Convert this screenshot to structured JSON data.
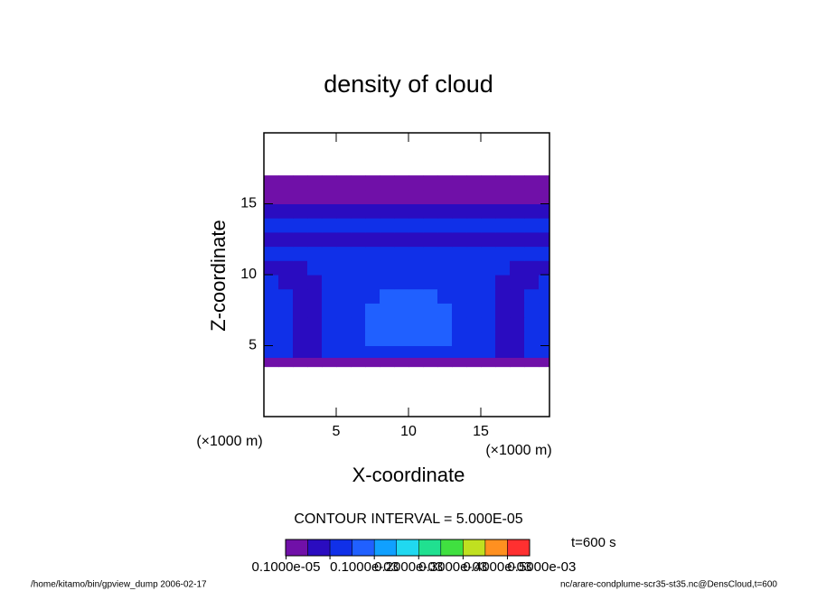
{
  "chart_data": {
    "type": "contour",
    "title": "density of cloud",
    "xlabel": "X-coordinate",
    "ylabel": "Z-coordinate",
    "xunit": "(×1000 m)",
    "yunit": "(×1000 m)",
    "xlim": [
      0,
      19.75
    ],
    "ylim": [
      0,
      20
    ],
    "xticks": [
      5,
      10,
      15
    ],
    "yticks": [
      5,
      10,
      15
    ],
    "x": [
      0.5,
      1.5,
      2.5,
      3.5,
      4.5,
      5.5,
      6.5,
      7.5,
      8.5,
      9.5,
      10.5,
      11.5,
      12.5,
      13.5,
      14.5,
      15.5,
      16.5,
      17.5,
      18.5,
      19.5
    ],
    "y": [
      3.85,
      4.5,
      5.5,
      6.5,
      7.5,
      8.5,
      9.5,
      10.5,
      11.5,
      12.5,
      13.5,
      14.5,
      15.5,
      16.5
    ],
    "z": [
      [
        2e-05,
        2e-05,
        2e-05,
        2e-05,
        2e-05,
        2e-05,
        2e-05,
        2e-05,
        2e-05,
        2e-05,
        2e-05,
        2e-05,
        2e-05,
        2e-05,
        2e-05,
        2e-05,
        2e-05,
        2e-05,
        2e-05,
        2e-05
      ],
      [
        0.00012,
        0.00012,
        8e-05,
        8e-05,
        0.00012,
        0.00012,
        0.00012,
        0.00014,
        0.00014,
        0.00014,
        0.00014,
        0.00014,
        0.00014,
        0.00012,
        0.00012,
        0.00012,
        8e-05,
        8e-05,
        0.00012,
        0.00012
      ],
      [
        0.00012,
        0.00012,
        8e-05,
        8e-05,
        0.00012,
        0.00012,
        0.00014,
        0.00016,
        0.00017,
        0.00017,
        0.00017,
        0.00017,
        0.00016,
        0.00014,
        0.00012,
        0.00012,
        8e-05,
        8e-05,
        0.00012,
        0.00012
      ],
      [
        0.00012,
        0.00012,
        8e-05,
        8e-05,
        0.00012,
        0.00012,
        0.00014,
        0.00016,
        0.00017,
        0.00017,
        0.00017,
        0.00017,
        0.00016,
        0.00014,
        0.00012,
        0.00012,
        8e-05,
        8e-05,
        0.00012,
        0.00012
      ],
      [
        0.00012,
        0.00012,
        8e-05,
        8e-05,
        0.00012,
        0.00012,
        0.00014,
        0.00016,
        0.00017,
        0.00017,
        0.00017,
        0.00017,
        0.00016,
        0.00014,
        0.00012,
        0.00012,
        8e-05,
        8e-05,
        0.00012,
        0.00012
      ],
      [
        0.00012,
        0.00012,
        8e-05,
        8e-05,
        0.00012,
        0.00012,
        0.00014,
        0.00014,
        0.00016,
        0.00016,
        0.00016,
        0.00016,
        0.00014,
        0.00014,
        0.00012,
        0.00012,
        8e-05,
        8e-05,
        0.00012,
        0.00012
      ],
      [
        0.00012,
        8e-05,
        8e-05,
        8e-05,
        0.00012,
        0.00012,
        0.00013,
        0.00014,
        0.00014,
        0.00014,
        0.00014,
        0.00014,
        0.00014,
        0.00013,
        0.00012,
        0.00012,
        8e-05,
        8e-05,
        8e-05,
        0.00012
      ],
      [
        8e-05,
        8e-05,
        8e-05,
        0.00012,
        0.00012,
        0.00012,
        0.00013,
        0.00014,
        0.00014,
        0.00014,
        0.00014,
        0.00014,
        0.00014,
        0.00013,
        0.00012,
        0.00012,
        0.00012,
        8e-05,
        8e-05,
        8e-05
      ],
      [
        0.00012,
        0.00012,
        0.00012,
        0.00012,
        0.00012,
        0.00012,
        0.00012,
        0.00013,
        0.00013,
        0.00013,
        0.00013,
        0.00013,
        0.00013,
        0.00012,
        0.00012,
        0.00012,
        0.00012,
        0.00012,
        0.00012,
        0.00012
      ],
      [
        8e-05,
        8e-05,
        8e-05,
        8e-05,
        8e-05,
        8e-05,
        8e-05,
        8e-05,
        8e-05,
        8e-05,
        8e-05,
        8e-05,
        8e-05,
        8e-05,
        8e-05,
        8e-05,
        8e-05,
        8e-05,
        8e-05,
        8e-05
      ],
      [
        0.00012,
        0.00012,
        0.00012,
        0.00012,
        0.00012,
        0.00012,
        0.00012,
        0.00012,
        0.00012,
        0.00012,
        0.00012,
        0.00012,
        0.00012,
        0.00012,
        0.00012,
        0.00012,
        0.00012,
        0.00012,
        0.00012,
        0.00012
      ],
      [
        8e-05,
        8e-05,
        8e-05,
        8e-05,
        8e-05,
        8e-05,
        8e-05,
        8e-05,
        8e-05,
        8e-05,
        8e-05,
        8e-05,
        8e-05,
        8e-05,
        8e-05,
        8e-05,
        8e-05,
        8e-05,
        8e-05,
        8e-05
      ],
      [
        3e-05,
        3e-05,
        3e-05,
        3e-05,
        3e-05,
        3e-05,
        3e-05,
        3e-05,
        3e-05,
        3e-05,
        3e-05,
        3e-05,
        3e-05,
        3e-05,
        3e-05,
        3e-05,
        3e-05,
        3e-05,
        3e-05,
        3e-05
      ],
      [
        3e-05,
        3e-05,
        3e-05,
        3e-05,
        3e-05,
        3e-05,
        3e-05,
        3e-05,
        3e-05,
        3e-05,
        3e-05,
        3e-05,
        3e-05,
        3e-05,
        3e-05,
        3e-05,
        3e-05,
        3e-05,
        3e-05,
        3e-05
      ]
    ],
    "colorbar": {
      "levels": [
        0,
        5e-05,
        0.0001,
        0.00015,
        0.0002,
        0.00025,
        0.0003,
        0.00035,
        0.0004,
        0.00045,
        0.0005,
        0.00055
      ],
      "colors": [
        "#7010a8",
        "#2a0cc0",
        "#1030e8",
        "#2060ff",
        "#10a0ff",
        "#20d8f0",
        "#20e090",
        "#40e040",
        "#c0e020",
        "#ff9020",
        "#ff3030"
      ],
      "ticks": [
        {
          "value": 1e-06,
          "label": "0.1000e-05"
        },
        {
          "value": 0.0001,
          "label": "0.1000e-03"
        },
        {
          "value": 0.0002,
          "label": "0.2000e-03"
        },
        {
          "value": 0.0003,
          "label": "0.3000e-03"
        },
        {
          "value": 0.0004,
          "label": "0.4000e-03"
        },
        {
          "value": 0.0005,
          "label": "0.5000e-03"
        }
      ]
    },
    "contour_interval": "CONTOUR INTERVAL = 5.000E-05",
    "time_label": "t=600 s",
    "footer_left": "/home/kitamo/bin/gpview_dump  2006-02-17",
    "footer_right": "nc/arare-condplume-scr35-st35.nc@DensCloud,t=600"
  }
}
